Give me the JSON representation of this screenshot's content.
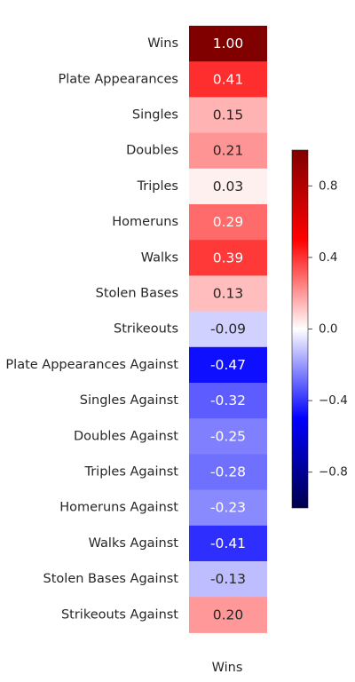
{
  "chart_data": {
    "type": "heatmap",
    "colormap": "seismic",
    "vmin": -1.0,
    "vmax": 1.0,
    "columns": [
      "Wins"
    ],
    "rows": [
      "Wins",
      "Plate Appearances",
      "Singles",
      "Doubles",
      "Triples",
      "Homeruns",
      "Walks",
      "Stolen Bases",
      "Strikeouts",
      "Plate Appearances Against",
      "Singles Against",
      "Doubles Against",
      "Triples Against",
      "Homeruns Against",
      "Walks Against",
      "Stolen Bases Against",
      "Strikeouts Against"
    ],
    "values": [
      1.0,
      0.41,
      0.15,
      0.21,
      0.03,
      0.29,
      0.39,
      0.13,
      -0.09,
      -0.47,
      -0.32,
      -0.25,
      -0.28,
      -0.23,
      -0.41,
      -0.13,
      0.2
    ],
    "annotations": [
      "1.00",
      "0.41",
      "0.15",
      "0.21",
      "0.03",
      "0.29",
      "0.39",
      "0.13",
      "-0.09",
      "-0.47",
      "-0.32",
      "-0.25",
      "-0.28",
      "-0.23",
      "-0.41",
      "-0.13",
      "0.20"
    ],
    "colorbar": {
      "ticks": [
        0.8,
        0.4,
        0.0,
        -0.4,
        -0.8
      ],
      "tick_labels": [
        "0.8",
        "0.4",
        "0.0",
        "−0.4",
        "−0.8"
      ]
    }
  }
}
